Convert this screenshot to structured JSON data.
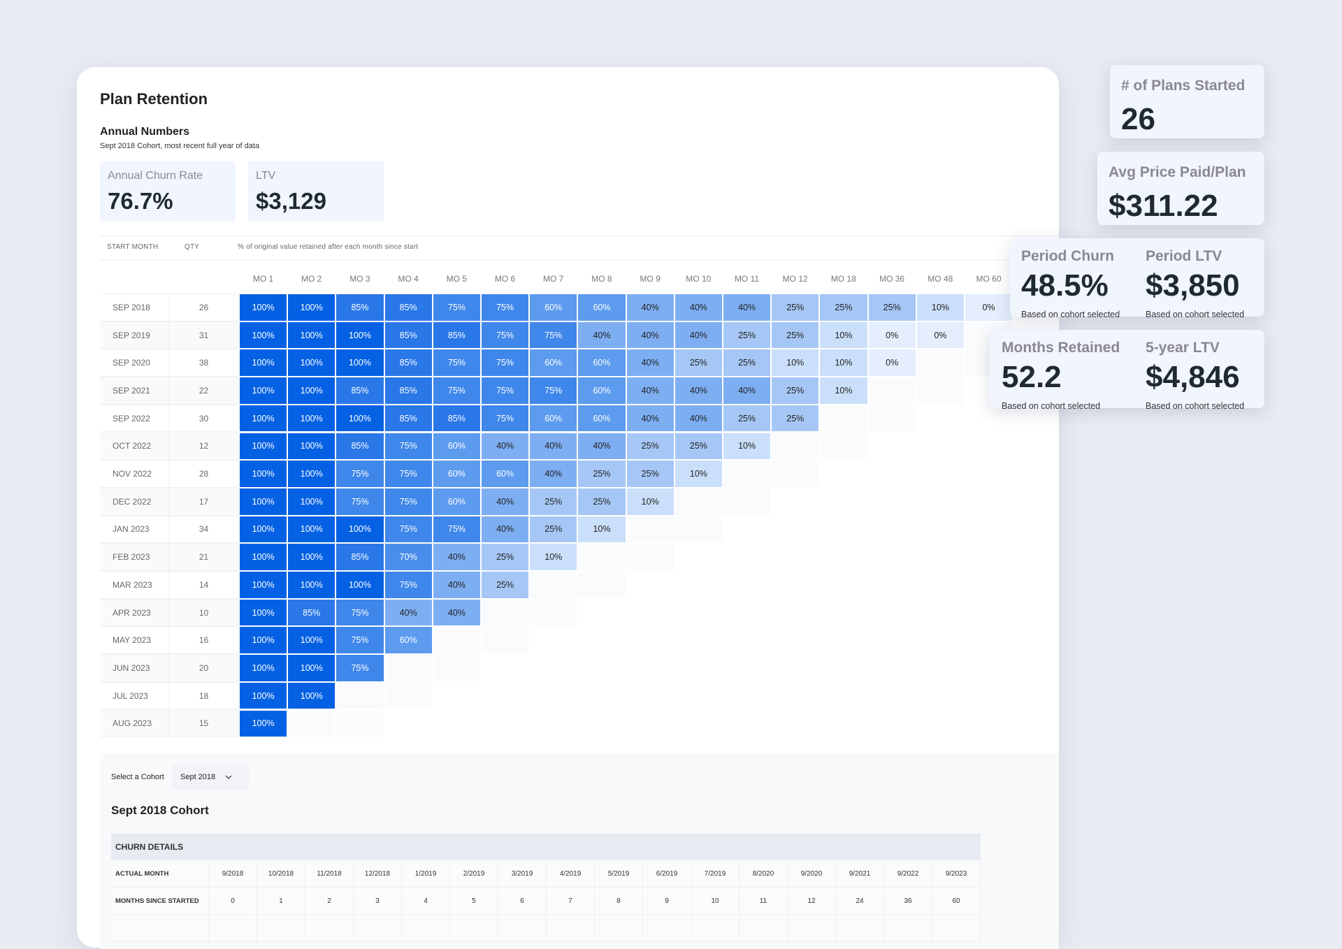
{
  "title": "Plan Retention",
  "annual": {
    "heading": "Annual Numbers",
    "subtitle": "Sept 2018 Cohort, most recent full year of data",
    "kpis": [
      {
        "label": "Annual Churn Rate",
        "value": "76.7%"
      },
      {
        "label": "LTV",
        "value": "$3,129"
      }
    ]
  },
  "table": {
    "headers": {
      "start_month": "START MONTH",
      "qty": "QTY",
      "desc": "% of original value retained after each month since start"
    },
    "months": [
      "MO 1",
      "MO 2",
      "MO 3",
      "MO 4",
      "MO 5",
      "MO 6",
      "MO 7",
      "MO 8",
      "MO 9",
      "MO 10",
      "MO 11",
      "MO 12",
      "MO 18",
      "MO 36",
      "MO 48",
      "MO 60"
    ],
    "rows": [
      {
        "start": "SEP 2018",
        "qty": "26",
        "values": [
          100,
          100,
          85,
          85,
          75,
          75,
          60,
          60,
          40,
          40,
          40,
          25,
          25,
          25,
          10,
          0
        ]
      },
      {
        "start": "SEP 2019",
        "qty": "31",
        "values": [
          100,
          100,
          100,
          85,
          85,
          75,
          75,
          40,
          40,
          40,
          25,
          25,
          10,
          0,
          0
        ]
      },
      {
        "start": "SEP 2020",
        "qty": "38",
        "values": [
          100,
          100,
          100,
          85,
          75,
          75,
          60,
          60,
          40,
          25,
          25,
          10,
          10,
          0
        ]
      },
      {
        "start": "SEP 2021",
        "qty": "22",
        "values": [
          100,
          100,
          85,
          85,
          75,
          75,
          75,
          60,
          40,
          40,
          40,
          25,
          10
        ]
      },
      {
        "start": "SEP 2022",
        "qty": "30",
        "values": [
          100,
          100,
          100,
          85,
          85,
          75,
          60,
          60,
          40,
          40,
          25,
          25
        ]
      },
      {
        "start": "OCT 2022",
        "qty": "12",
        "values": [
          100,
          100,
          85,
          75,
          60,
          40,
          40,
          40,
          25,
          25,
          10
        ]
      },
      {
        "start": "NOV 2022",
        "qty": "28",
        "values": [
          100,
          100,
          75,
          75,
          60,
          60,
          40,
          25,
          25,
          10
        ]
      },
      {
        "start": "DEC 2022",
        "qty": "17",
        "values": [
          100,
          100,
          75,
          75,
          60,
          40,
          25,
          25,
          10
        ]
      },
      {
        "start": "JAN 2023",
        "qty": "34",
        "values": [
          100,
          100,
          100,
          75,
          75,
          40,
          25,
          10
        ]
      },
      {
        "start": "FEB 2023",
        "qty": "21",
        "values": [
          100,
          100,
          85,
          70,
          40,
          25,
          10
        ]
      },
      {
        "start": "MAR 2023",
        "qty": "14",
        "values": [
          100,
          100,
          100,
          75,
          40,
          25
        ]
      },
      {
        "start": "APR 2023",
        "qty": "10",
        "values": [
          100,
          85,
          75,
          40,
          40
        ]
      },
      {
        "start": "MAY 2023",
        "qty": "16",
        "values": [
          100,
          100,
          75,
          60
        ]
      },
      {
        "start": "JUN 2023",
        "qty": "20",
        "values": [
          100,
          100,
          75
        ]
      },
      {
        "start": "JUL 2023",
        "qty": "18",
        "values": [
          100,
          100
        ]
      },
      {
        "start": "AUG 2023",
        "qty": "15",
        "values": [
          100
        ]
      }
    ]
  },
  "colors": {
    "100": "#0561e3",
    "85": "#2a77e8",
    "75": "#3f87ea",
    "70": "#4a8eec",
    "60": "#5c9bee",
    "40": "#7eaef2",
    "25": "#a6c7f5",
    "10": "#cadffa",
    "0": "#e4eefc"
  },
  "cohort": {
    "select_label": "Select a Cohort",
    "selected": "Sept 2018",
    "heading": "Sept 2018 Cohort",
    "churn_details": "CHURN DETAILS",
    "actual_month_label": "ACTUAL MONTH",
    "actual_months": [
      "9/2018",
      "10/2018",
      "11/2018",
      "12/2018",
      "1/2019",
      "2/2019",
      "3/2019",
      "4/2019",
      "5/2019",
      "6/2019",
      "7/2019",
      "8/2020",
      "9/2020",
      "9/2021",
      "9/2022",
      "9/2023"
    ],
    "months_since_label": "MONTHS SINCE STARTED",
    "months_since": [
      "0",
      "1",
      "2",
      "3",
      "4",
      "5",
      "6",
      "7",
      "8",
      "9",
      "10",
      "11",
      "12",
      "24",
      "36",
      "60"
    ]
  },
  "cards": {
    "plans_started": {
      "label": "# of Plans Started",
      "value": "26"
    },
    "avg_price": {
      "label": "Avg Price Paid/Plan",
      "value": "$311.22"
    },
    "period_churn": {
      "label": "Period Churn",
      "value": "48.5%",
      "note": "Based on cohort selected"
    },
    "period_ltv": {
      "label": "Period LTV",
      "value": "$3,850",
      "note": "Based on cohort selected"
    },
    "months_retained": {
      "label": "Months Retained",
      "value": "52.2",
      "note": "Based on cohort selected"
    },
    "five_year_ltv": {
      "label": "5-year LTV",
      "value": "$4,846",
      "note": "Based on cohort selected"
    }
  }
}
